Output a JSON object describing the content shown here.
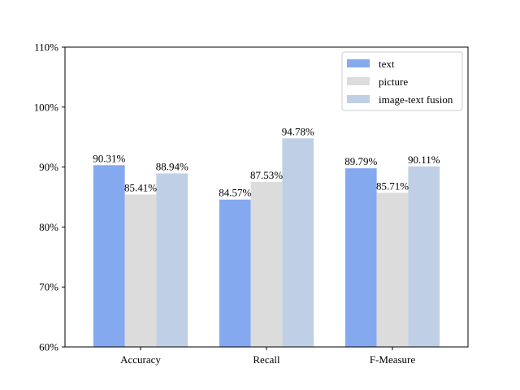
{
  "chart_data": {
    "type": "bar",
    "title": "",
    "xlabel": "",
    "ylabel": "",
    "categories": [
      "Accuracy",
      "Recall",
      "F-Measure"
    ],
    "series": [
      {
        "name": "text",
        "color": "#85a9ef",
        "values": [
          90.31,
          84.57,
          89.79
        ],
        "labels": [
          "90.31%",
          "84.57%",
          "89.79%"
        ]
      },
      {
        "name": "picture",
        "color": "#dcdcdc",
        "values": [
          85.41,
          87.53,
          85.71
        ],
        "labels": [
          "85.41%",
          "87.53%",
          "85.71%"
        ]
      },
      {
        "name": "image-text fusion",
        "color": "#bfd0e6",
        "values": [
          88.94,
          94.78,
          90.11
        ],
        "labels": [
          "88.94%",
          "94.78%",
          "90.11%"
        ]
      }
    ],
    "ylim": [
      60,
      110
    ],
    "yticks": [
      60,
      70,
      80,
      90,
      100,
      110
    ],
    "ytick_labels": [
      "60%",
      "70%",
      "80%",
      "90%",
      "100%",
      "110%"
    ],
    "grid": false,
    "legend_position": "top-right"
  }
}
